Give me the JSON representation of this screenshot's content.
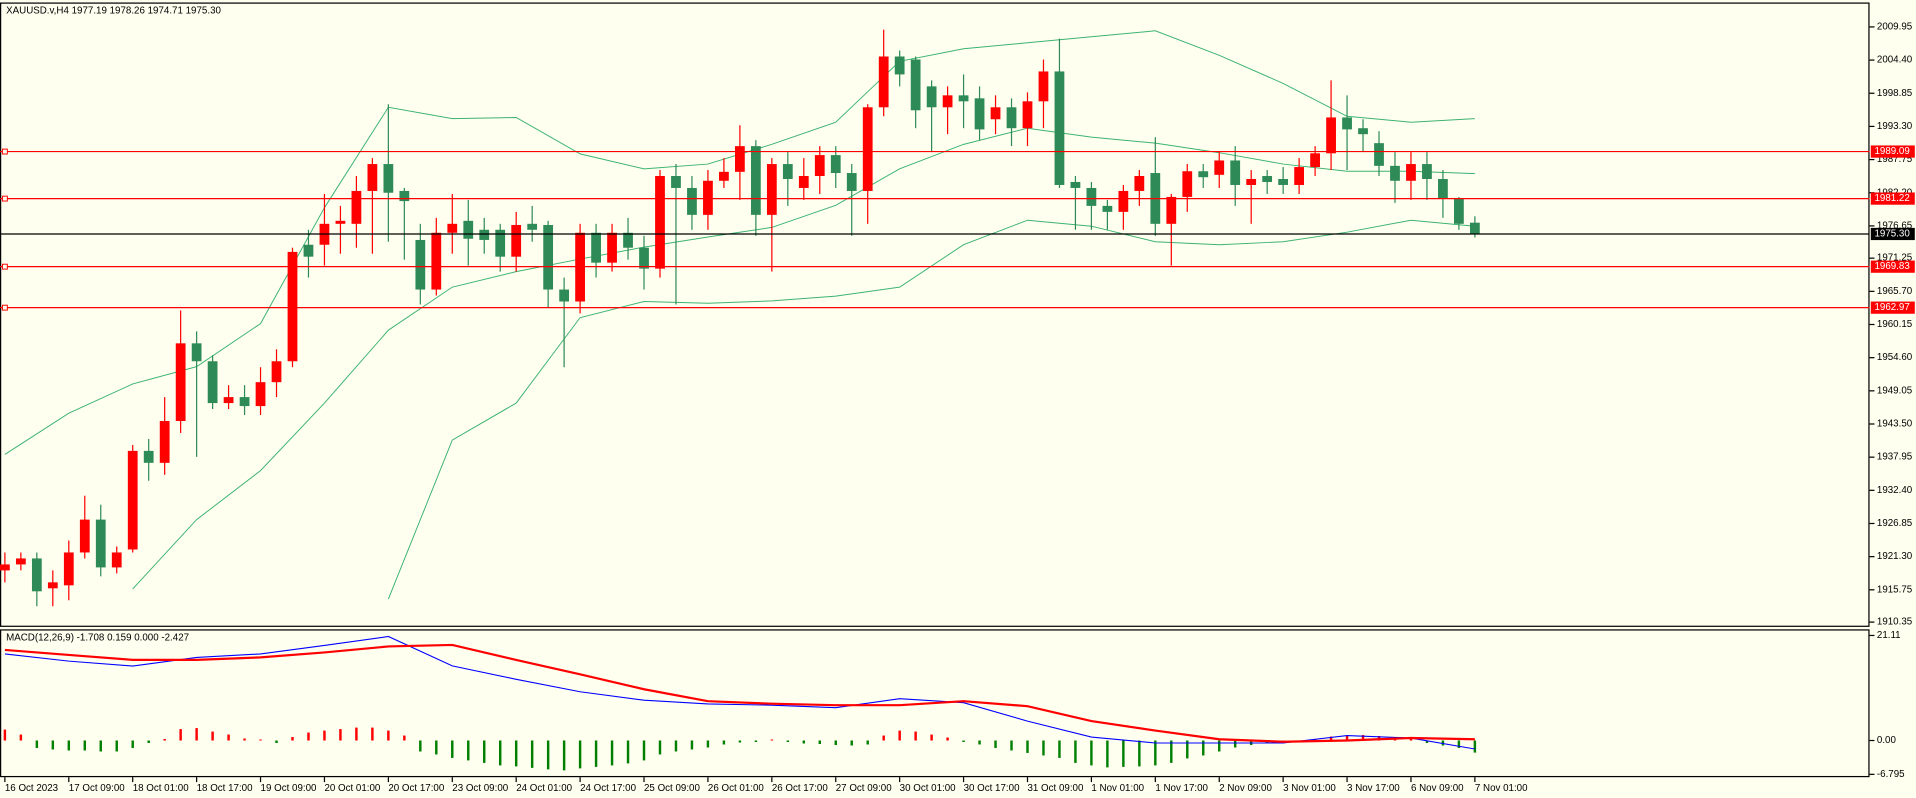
{
  "chart_data": [
    {
      "type": "candlestick",
      "title": "XAUUSD.v,H4  1977.19 1978.26 1974.71 1975.30",
      "categories": [
        "16 Oct 2023",
        null,
        null,
        null,
        "17 Oct 09:00",
        null,
        null,
        null,
        "18 Oct 01:00",
        null,
        null,
        null,
        "18 Oct 17:00",
        null,
        null,
        null,
        "19 Oct 09:00",
        null,
        null,
        null,
        "20 Oct 01:00",
        null,
        null,
        null,
        "20 Oct 17:00",
        null,
        null,
        null,
        "23 Oct 09:00",
        null,
        null,
        null,
        "24 Oct 01:00",
        null,
        null,
        null,
        "24 Oct 17:00",
        null,
        null,
        null,
        "25 Oct 09:00",
        null,
        null,
        null,
        "26 Oct 01:00",
        null,
        null,
        null,
        "26 Oct 17:00",
        null,
        null,
        null,
        "27 Oct 09:00",
        null,
        null,
        null,
        "30 Oct 01:00",
        null,
        null,
        null,
        "30 Oct 17:00",
        null,
        null,
        null,
        "31 Oct 09:00",
        null,
        null,
        null,
        "1 Nov 01:00",
        null,
        null,
        null,
        "1 Nov 17:00",
        null,
        null,
        null,
        "2 Nov 09:00",
        null,
        null,
        null,
        "3 Nov 01:00",
        null,
        null,
        null,
        "3 Nov 17:00",
        null,
        null,
        null,
        "6 Nov 09:00",
        null,
        null,
        null,
        "7 Nov 01:00"
      ],
      "open": [
        1919,
        1920,
        1921,
        1916,
        1916.5,
        1922,
        1927.5,
        1919.5,
        1922.5,
        1939,
        1937,
        1944,
        1957,
        1954,
        1947,
        1948,
        1946.5,
        1950.5,
        1954,
        1973.5,
        1973.5,
        1977,
        1977,
        1982.5,
        1987,
        1982.5,
        1974.3,
        1966,
        1975.5,
        1977.5,
        1976,
        1976,
        1971.5,
        1977,
        1976.8,
        1966,
        1964,
        1975.5,
        1970.5,
        1975.5,
        1973,
        1969.5,
        1985,
        1983,
        1978.5,
        1984.2,
        1985.7,
        1990,
        1978.5,
        1987,
        1983,
        1985,
        1988.5,
        1985.5,
        1982.5,
        1996.5,
        2005,
        2004.5,
        2000,
        1996.5,
        1998.5,
        1998,
        1994.5,
        1996.5,
        1993,
        1997.5,
        2002.5,
        1984,
        1983,
        1980,
        1979,
        1982.5,
        1985.5,
        1977,
        1981.5,
        1985.8,
        1985.2,
        1987.6,
        1983.5,
        1985,
        1984.5,
        1983.5,
        1986.5,
        1988.8,
        1994.8,
        1993,
        1990.5,
        1986.7,
        1984.2,
        1987,
        1984.5,
        1981.2,
        1977.19
      ],
      "high": [
        1922,
        1922,
        1922,
        1919,
        1924,
        1931.5,
        1930,
        1923,
        1940,
        1941,
        1948,
        1962.5,
        1959,
        1955,
        1950,
        1950,
        1953,
        1956,
        1973,
        1976,
        1982,
        1980,
        1985,
        1988,
        1997,
        1983,
        1977,
        1978,
        1982,
        1981,
        1978,
        1977,
        1979,
        1980,
        1977.5,
        1968,
        1977,
        1977,
        1977,
        1978,
        1975,
        1986,
        1987,
        1985,
        1986,
        1988,
        1993.5,
        1991,
        1988,
        1989,
        1988,
        1990,
        1990,
        1987,
        1997,
        2009.5,
        2006,
        2005,
        2001,
        2000,
        2002,
        2000,
        1998.5,
        1998,
        1999,
        2004.5,
        2008,
        1985,
        1984,
        1981,
        1983.5,
        1986,
        1991.5,
        1982,
        1987,
        1987,
        1989,
        1990,
        1986,
        1986,
        1986.5,
        1988,
        1990,
        2001,
        1998.5,
        1994.5,
        1992.5,
        1989,
        1989,
        1989,
        1986,
        1981.5,
        1978.26
      ],
      "low": [
        1917,
        1919,
        1913,
        1913,
        1914,
        1921,
        1918,
        1918.5,
        1922,
        1934,
        1935,
        1942,
        1938,
        1946,
        1946,
        1945,
        1945,
        1948,
        1953,
        1968,
        1970,
        1972,
        1973,
        1972,
        1974,
        1971,
        1963.5,
        1965,
        1972,
        1970,
        1972,
        1969,
        1969,
        1974,
        1963,
        1953,
        1962,
        1968,
        1969,
        1971,
        1966,
        1968,
        1963.5,
        1976,
        1976,
        1983,
        1981,
        1975,
        1969,
        1980,
        1981,
        1982,
        1983,
        1975,
        1977,
        1995,
        2000,
        1993,
        1989,
        1992,
        1993,
        1991,
        1992,
        1990,
        1990,
        1993,
        1983,
        1976,
        1976,
        1976,
        1976,
        1980,
        1975,
        1970,
        1979,
        1983,
        1983,
        1980,
        1977,
        1982,
        1982,
        1982,
        1985,
        1986,
        1986,
        1989,
        1985,
        1980.5,
        1981,
        1981,
        1978,
        1976,
        1974.71
      ],
      "close": [
        1920,
        1921,
        1915.5,
        1917,
        1922,
        1927.5,
        1919.5,
        1922,
        1939,
        1937,
        1944,
        1957,
        1954,
        1947,
        1948,
        1946.5,
        1950.5,
        1954,
        1972.3,
        1971.5,
        1977,
        1977.5,
        1982.5,
        1987,
        1982.2,
        1980.8,
        1966,
        1975.5,
        1977,
        1974.5,
        1974.3,
        1971.5,
        1976.8,
        1976,
        1966,
        1964,
        1975.5,
        1970.5,
        1975.5,
        1973,
        1969.5,
        1985,
        1983,
        1978.5,
        1984.2,
        1985.7,
        1990,
        1978.5,
        1987,
        1984.5,
        1985,
        1988.5,
        1985.5,
        1982.5,
        1996.5,
        2005,
        2002,
        1996,
        1996.5,
        1998.5,
        1997.5,
        1992.8,
        1996.5,
        1993,
        1997.5,
        2002.5,
        1983.5,
        1983,
        1980,
        1979,
        1982.5,
        1985,
        1977,
        1981.5,
        1985.8,
        1984.8,
        1987.6,
        1983.5,
        1984.5,
        1984,
        1983.5,
        1986.5,
        1988.8,
        1994.8,
        1992.8,
        1992,
        1986.7,
        1984.2,
        1987,
        1984.5,
        1981.2,
        1977,
        1975.3
      ],
      "up_color": "#ff0000",
      "down_color": "#2e8b57",
      "bands": {
        "color": "#3cb371",
        "x": [
          0,
          4,
          8,
          12,
          16,
          20,
          24,
          28,
          32,
          36,
          40,
          44,
          48,
          52,
          56,
          60,
          64,
          68,
          72,
          76,
          80,
          84,
          88,
          92
        ],
        "upper": [
          1938.4,
          1945.3,
          1950.2,
          1953.1,
          1960.3,
          1979.7,
          1996.5,
          1994.6,
          1994.8,
          1988.7,
          1986.2,
          1987.0,
          1990.3,
          1994.0,
          2004.2,
          2006.3,
          2007.3,
          2008.3,
          2009.3,
          2005.2,
          2000.5,
          1995.0,
          1994.0,
          1994.6
        ],
        "middle": [
          null,
          null,
          1915.9,
          1927.5,
          1935.7,
          1947,
          1959.2,
          1966.4,
          1969,
          1971.1,
          1973.1,
          1974.8,
          1976.4,
          1980.1,
          1986.2,
          1990.3,
          1993,
          1991.5,
          1990.5,
          1988.9,
          1987,
          1985.8,
          1985.8,
          1985.4
        ],
        "lower": [
          null,
          null,
          null,
          null,
          null,
          null,
          1914.2,
          1940.8,
          1947,
          1961.3,
          1964,
          1963.7,
          1964.1,
          1964.9,
          1966.4,
          1973.5,
          1977.6,
          1976.6,
          1974,
          1973.5,
          1974,
          1975.6,
          1977.6,
          1976.6
        ]
      },
      "levels": {
        "color": "#ff0000",
        "values": [
          1989.09,
          1981.22,
          1969.83,
          1962.97
        ]
      },
      "current_price": {
        "value": 1975.3,
        "label": "1975.30",
        "color": "#000000"
      },
      "ylim": [
        1909.75,
        2014.04
      ],
      "yticks": [
        2009.95,
        {
          "value": 2004.4,
          "label": "2004.40"
        },
        1998.85,
        {
          "value": 1993.3,
          "label": "1993.30"
        },
        1987.75,
        {
          "value": 1982.2,
          "label": "1982.20"
        },
        1976.65,
        1971.25,
        {
          "value": 1965.7,
          "label": "1965.70"
        },
        1960.15,
        {
          "value": 1954.6,
          "label": "1954.60"
        },
        1949.05,
        {
          "value": 1943.5,
          "label": "1943.50"
        },
        1937.95,
        {
          "value": 1932.4,
          "label": "1932.40"
        },
        1926.85,
        {
          "value": 1921.3,
          "label": "1921.30"
        },
        1915.75,
        1910.35
      ]
    },
    {
      "type": "macd",
      "title": "MACD(12,26,9) -1.708 0.159 0.000 -2.427",
      "histogram": [
        2.2,
        1.2,
        -1.5,
        -1.8,
        -2.0,
        -2.0,
        -2.2,
        -2.2,
        -1.5,
        -0.5,
        0.3,
        2.3,
        2.5,
        1.8,
        1.2,
        0.4,
        0.2,
        -0.5,
        0.7,
        1.6,
        2.0,
        2.3,
        2.6,
        2.6,
        2.0,
        1.0,
        -2.2,
        -2.8,
        -3.5,
        -4.0,
        -4.5,
        -5.0,
        -5.2,
        -5.5,
        -5.8,
        -6.0,
        -5.6,
        -5.3,
        -5.0,
        -4.6,
        -4.0,
        -2.8,
        -2.2,
        -1.8,
        -1.4,
        -0.8,
        -0.4,
        -0.3,
        0.2,
        -0.3,
        -0.6,
        -0.7,
        -0.9,
        -1.0,
        -0.8,
        1.0,
        2.0,
        1.8,
        1.2,
        0.6,
        -0.3,
        -0.8,
        -1.5,
        -2.0,
        -2.5,
        -3.0,
        -3.5,
        -4.5,
        -5.0,
        -5.4,
        -5.3,
        -5.2,
        -5.0,
        -4.5,
        -3.6,
        -3.0,
        -2.2,
        -1.4,
        -0.9,
        -0.5,
        -0.3,
        -0.2,
        0.3,
        0.8,
        1.0,
        1.1,
        0.9,
        0.6,
        0.4,
        -0.5,
        -1.0,
        -1.5,
        -2.427
      ],
      "up_color": "#ff0000",
      "down_color": "#008000",
      "x": [
        0,
        4,
        8,
        12,
        16,
        20,
        24,
        28,
        32,
        36,
        40,
        44,
        48,
        52,
        56,
        60,
        64,
        68,
        72,
        76,
        80,
        84,
        88,
        92
      ],
      "lines": [
        {
          "color": "#0000ff",
          "values": [
            17.4,
            15.95,
            14.97,
            16.7,
            17.4,
            19.1,
            20.9,
            15.0,
            12.3,
            9.8,
            8.1,
            7.35,
            7.1,
            6.6,
            8.4,
            7.6,
            3.9,
            0.7,
            -0.5,
            -0.5,
            -0.5,
            1.0,
            0.5,
            -1.708
          ]
        },
        {
          "color": "#ff0000",
          "values": [
            18.2,
            17.2,
            16.2,
            16.2,
            16.7,
            17.7,
            18.9,
            19.2,
            16.2,
            13.3,
            10.3,
            7.9,
            7.4,
            7.1,
            7.1,
            7.9,
            6.9,
            3.9,
            2.0,
            0.25,
            -0.25,
            0,
            0.5,
            0.25
          ]
        }
      ],
      "ylim": [
        -7.37,
        22.34
      ],
      "yticks": [
        21.11,
        {
          "value": 0,
          "label": "0.00"
        },
        -6.795
      ]
    }
  ]
}
